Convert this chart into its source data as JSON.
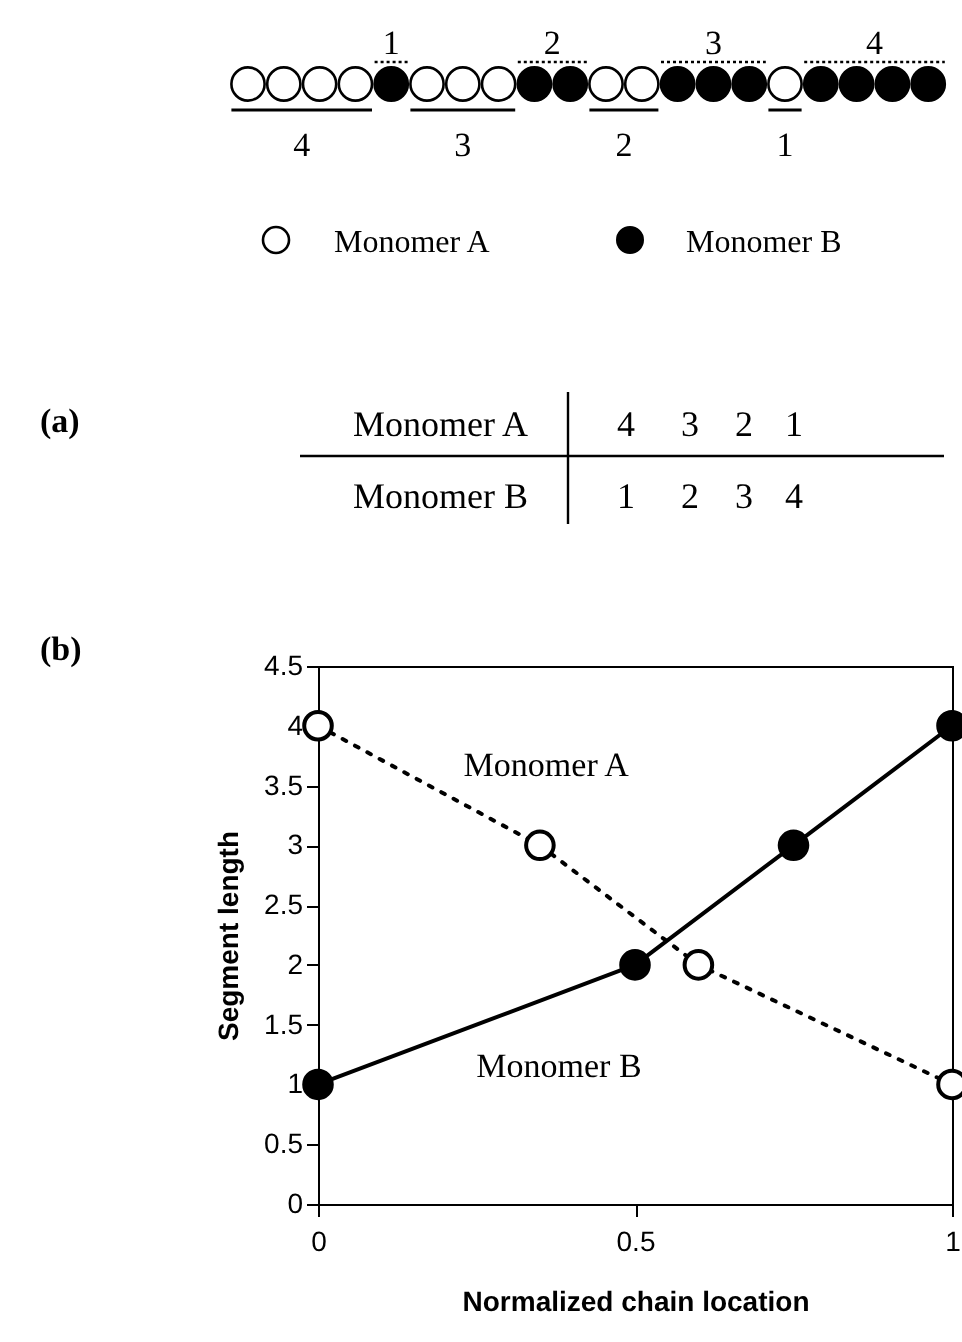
{
  "chart_data": {
    "type": "line",
    "xlabel": "Normalized chain location",
    "ylabel": "Segment length",
    "xlim": [
      0,
      1
    ],
    "xticks": [
      0,
      0.5,
      1
    ],
    "ylim": [
      0,
      4.5
    ],
    "yticks": [
      0,
      0.5,
      1,
      1.5,
      2,
      2.5,
      3,
      3.5,
      4,
      4.5
    ],
    "grid": false,
    "marker": "circle",
    "series": [
      {
        "name": "Monomer A",
        "color": "#000000",
        "line_style": "dotted",
        "x": [
          0,
          0.35,
          0.6,
          1
        ],
        "values": [
          4,
          3,
          2,
          1
        ]
      },
      {
        "name": "Monomer B",
        "color": "#000000",
        "line_style": "solid",
        "x": [
          0,
          0.5,
          0.75,
          1
        ],
        "values": [
          1,
          2,
          3,
          4
        ]
      }
    ],
    "annotations": [
      "1",
      "2",
      "3",
      "4",
      "4",
      "3",
      "2",
      "1",
      "Monomer A",
      "Monomer B",
      "(a)",
      "Monomer A",
      "4",
      "3",
      "2",
      "1",
      "Monomer B",
      "1",
      "2",
      "3",
      "4",
      "(b)"
    ]
  }
}
